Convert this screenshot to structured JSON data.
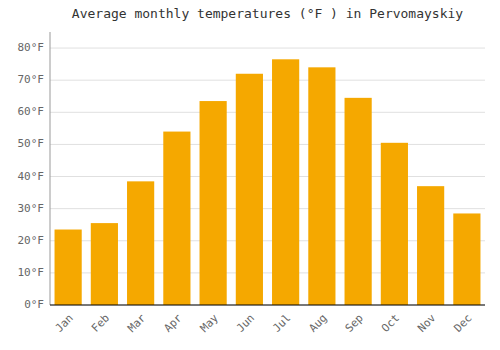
{
  "chart_data": {
    "type": "bar",
    "title": "Average monthly temperatures (°F ) in Pervomayskiy",
    "categories": [
      "Jan",
      "Feb",
      "Mar",
      "Apr",
      "May",
      "Jun",
      "Jul",
      "Aug",
      "Sep",
      "Oct",
      "Nov",
      "Dec"
    ],
    "values": [
      23.5,
      25.5,
      38.5,
      54.0,
      63.5,
      72.0,
      76.5,
      74.0,
      64.5,
      50.5,
      37.0,
      28.5
    ],
    "color": "#F5A800",
    "ylim": [
      0,
      85
    ],
    "yticks": [
      {
        "value": 0,
        "label": "0°F"
      },
      {
        "value": 10,
        "label": "10°F"
      },
      {
        "value": 20,
        "label": "20°F"
      },
      {
        "value": 30,
        "label": "30°F"
      },
      {
        "value": 40,
        "label": "40°F"
      },
      {
        "value": 50,
        "label": "50°F"
      },
      {
        "value": 60,
        "label": "60°F"
      },
      {
        "value": 70,
        "label": "70°F"
      },
      {
        "value": 80,
        "label": "80°F"
      }
    ],
    "grid": true
  }
}
